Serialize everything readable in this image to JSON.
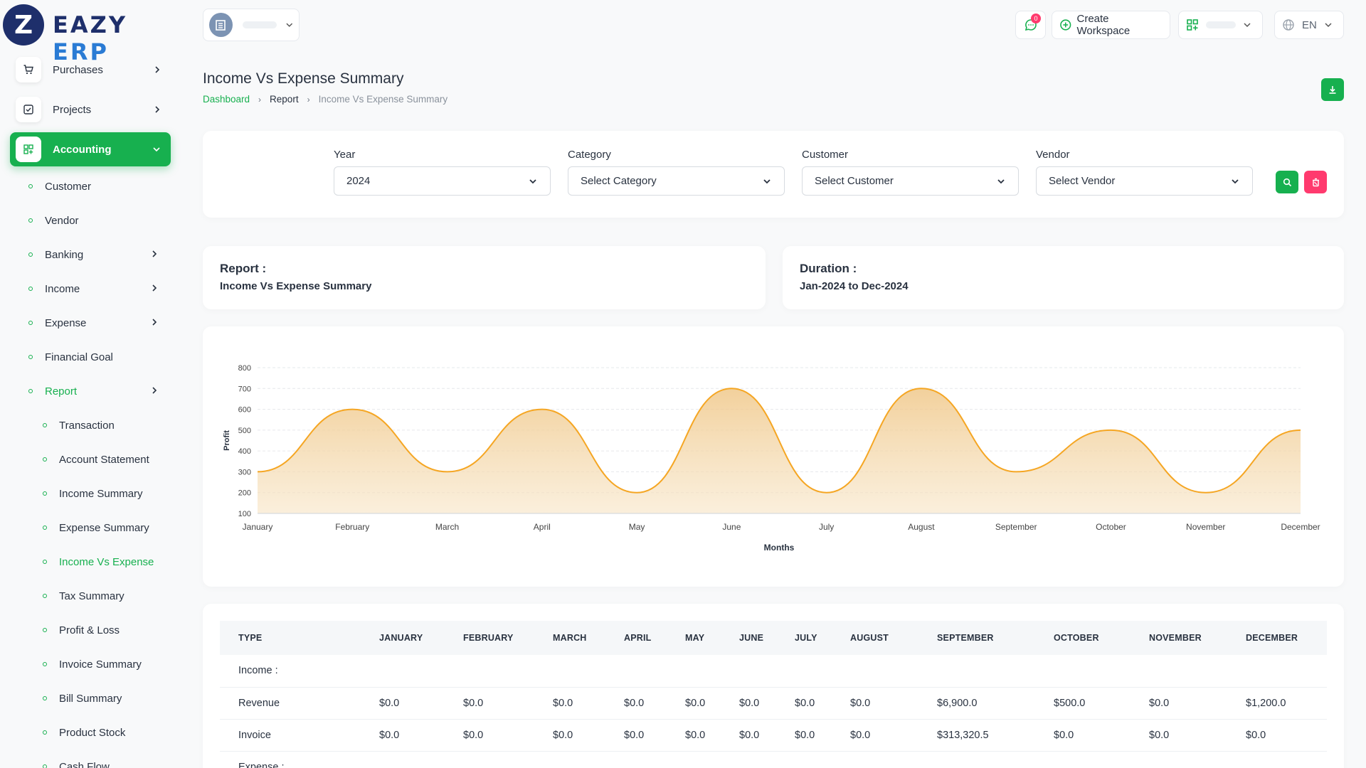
{
  "brand": {
    "logo_letter": "Z",
    "name_part1": "EAZY",
    "name_part2": "ERP"
  },
  "topbar": {
    "message_count": "0",
    "create_workspace": "Create Workspace",
    "language": "EN"
  },
  "sidebar": {
    "top_items": [
      {
        "label": "Purchases",
        "icon": "cart-icon"
      },
      {
        "label": "Projects",
        "icon": "checkbox-icon"
      },
      {
        "label": "Accounting",
        "icon": "grid-icon",
        "active": true
      }
    ],
    "accounting_items": [
      "Customer",
      "Vendor",
      "Banking",
      "Income",
      "Expense",
      "Financial Goal",
      "Report"
    ],
    "report_items": [
      "Transaction",
      "Account Statement",
      "Income Summary",
      "Expense Summary",
      "Income Vs Expense",
      "Tax Summary",
      "Profit & Loss",
      "Invoice Summary",
      "Bill Summary",
      "Product Stock",
      "Cash Flow"
    ]
  },
  "page": {
    "title": "Income Vs Expense Summary",
    "breadcrumb": [
      "Dashboard",
      "Report",
      "Income Vs Expense Summary"
    ]
  },
  "filters": {
    "year": {
      "label": "Year",
      "value": "2024"
    },
    "category": {
      "label": "Category",
      "value": "Select Category"
    },
    "customer": {
      "label": "Customer",
      "value": "Select Customer"
    },
    "vendor": {
      "label": "Vendor",
      "value": "Select Vendor"
    }
  },
  "report_info": {
    "report_label": "Report :",
    "report_value": "Income Vs Expense Summary",
    "duration_label": "Duration :",
    "duration_value": "Jan-2024 to Dec-2024"
  },
  "chart_data": {
    "type": "area",
    "categories": [
      "January",
      "February",
      "March",
      "April",
      "May",
      "June",
      "July",
      "August",
      "September",
      "October",
      "November",
      "December"
    ],
    "series": [
      {
        "values": [
          300,
          600,
          300,
          600,
          200,
          700,
          200,
          700,
          300,
          500,
          200,
          500
        ]
      }
    ],
    "xlabel": "Months",
    "ylabel": "Profit",
    "ylim": [
      100,
      800
    ],
    "yticks": [
      100,
      200,
      300,
      400,
      500,
      600,
      700,
      800
    ],
    "grid": true,
    "color": "#f5a623"
  },
  "table": {
    "headers": [
      "TYPE",
      "JANUARY",
      "FEBRUARY",
      "MARCH",
      "APRIL",
      "MAY",
      "JUNE",
      "JULY",
      "AUGUST",
      "SEPTEMBER",
      "OCTOBER",
      "NOVEMBER",
      "DECEMBER"
    ],
    "rows": [
      {
        "section": "Income :"
      },
      {
        "cells": [
          "Revenue",
          "$0.0",
          "$0.0",
          "$0.0",
          "$0.0",
          "$0.0",
          "$0.0",
          "$0.0",
          "$0.0",
          "$6,900.0",
          "$500.0",
          "$0.0",
          "$1,200.0"
        ]
      },
      {
        "cells": [
          "Invoice",
          "$0.0",
          "$0.0",
          "$0.0",
          "$0.0",
          "$0.0",
          "$0.0",
          "$0.0",
          "$0.0",
          "$313,320.5",
          "$0.0",
          "$0.0",
          "$0.0"
        ]
      },
      {
        "section": "Expense :"
      }
    ]
  },
  "colors": {
    "accent": "#17b04f",
    "danger": "#ff3a6e",
    "chart_line": "#f5a623",
    "brand_dark": "#1e2f6b",
    "brand_light": "#2a7bd4"
  }
}
